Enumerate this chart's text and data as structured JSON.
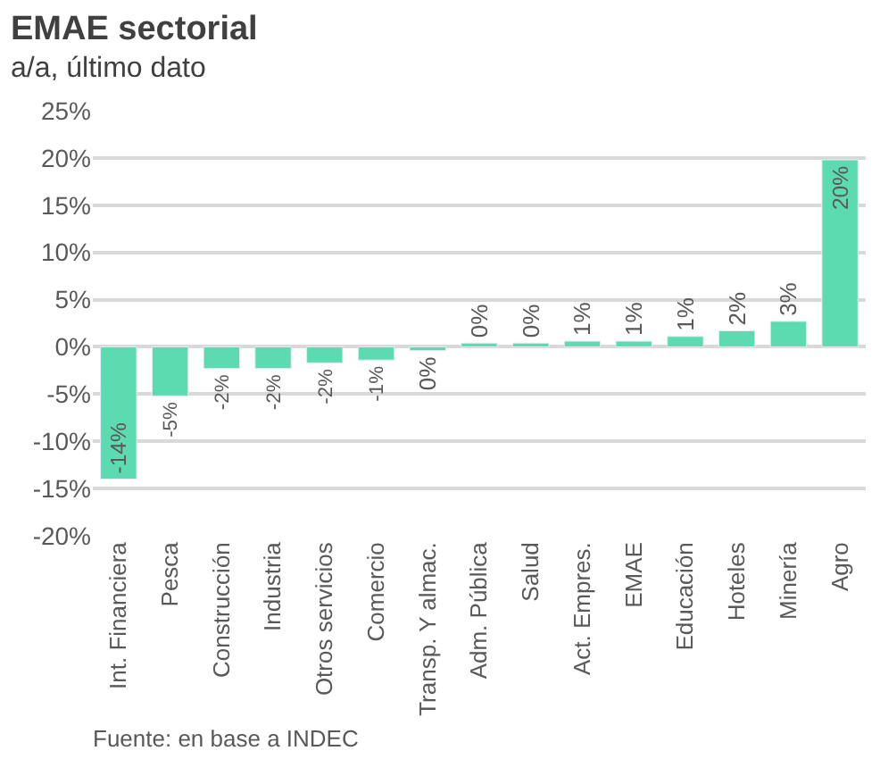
{
  "chart_data": {
    "type": "bar",
    "title": "EMAE sectorial",
    "subtitle": "a/a, último dato",
    "categories": [
      "Int. Financiera",
      "Pesca",
      "Construcción",
      "Industria",
      "Otros servicios",
      "Comercio",
      "Transp. Y almac.",
      "Adm. Pública",
      "Salud",
      "Act. Empres.",
      "EMAE",
      "Educación",
      "Hoteles",
      "Minería",
      "Agro"
    ],
    "values": [
      -14.0,
      -5.2,
      -2.3,
      -2.3,
      -1.7,
      -1.4,
      -0.4,
      0.4,
      0.4,
      0.6,
      0.6,
      1.1,
      1.7,
      2.7,
      19.8
    ],
    "value_labels": [
      "-14%",
      "-5%",
      "-2%",
      "-2%",
      "-2%",
      "-1%",
      "0%",
      "0%",
      "0%",
      "1%",
      "1%",
      "1%",
      "2%",
      "3%",
      "20%"
    ],
    "color": "#5ddbb0",
    "ylim": [
      -20,
      25
    ],
    "yticks": [
      {
        "value": -20,
        "label": "-20%"
      },
      {
        "value": -15,
        "label": "-15%"
      },
      {
        "value": -10,
        "label": "-10%"
      },
      {
        "value": -5,
        "label": "-5%"
      },
      {
        "value": 0,
        "label": "0%"
      },
      {
        "value": 5,
        "label": "5%"
      },
      {
        "value": 10,
        "label": "10%"
      },
      {
        "value": 15,
        "label": "15%"
      },
      {
        "value": 20,
        "label": "20%"
      },
      {
        "value": 25,
        "label": "25%"
      }
    ],
    "grid": "y",
    "legend": false,
    "annotations": [
      "Fuente: en base a INDEC"
    ]
  }
}
